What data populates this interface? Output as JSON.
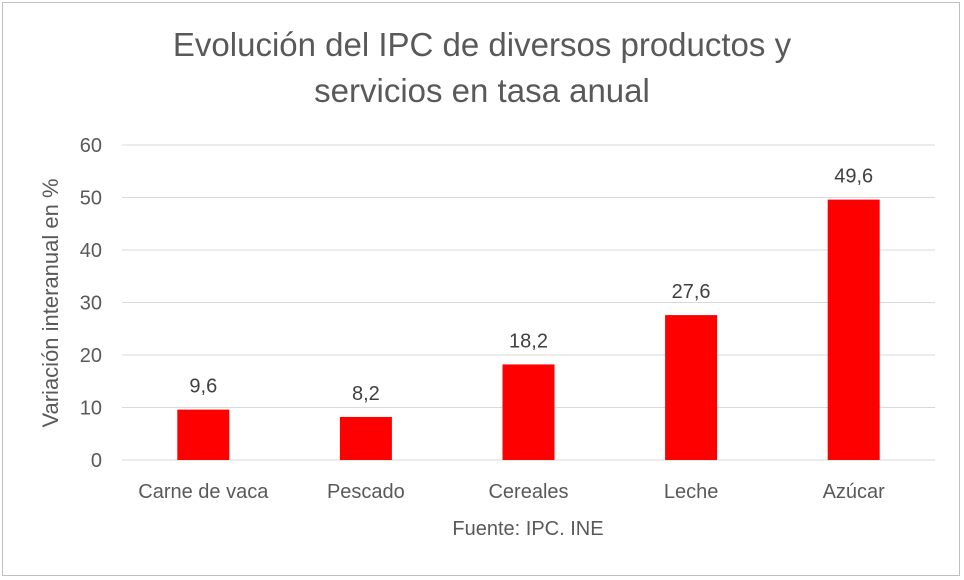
{
  "chart_data": {
    "type": "bar",
    "title_lines": [
      "Evolución del IPC de diversos productos y",
      "servicios en tasa anual"
    ],
    "ylabel": "Variación interanual en %",
    "xlabel": "Fuente: IPC. INE",
    "categories": [
      "Carne de vaca",
      "Pescado",
      "Cereales",
      "Leche",
      "Azúcar"
    ],
    "values": [
      9.6,
      8.2,
      18.2,
      27.6,
      49.6
    ],
    "data_labels": [
      "9,6",
      "8,2",
      "18,2",
      "27,6",
      "49,6"
    ],
    "ylim": [
      0,
      60
    ],
    "yticks": [
      0,
      10,
      20,
      30,
      40,
      50,
      60
    ],
    "grid": true,
    "legend": "none",
    "bar_color": "#ff0000"
  }
}
